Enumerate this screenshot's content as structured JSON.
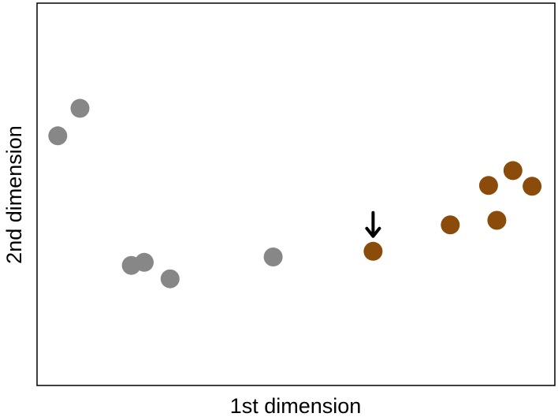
{
  "chart_data": {
    "type": "scatter",
    "title": "",
    "xlabel": "1st dimension",
    "ylabel": "2nd dimension",
    "xlim": [
      0,
      100
    ],
    "ylim": [
      0,
      100
    ],
    "grid": false,
    "ticks_shown": false,
    "series": [
      {
        "color": "#878787",
        "points": [
          {
            "x": 4.0,
            "y": 65.3
          },
          {
            "x": 8.3,
            "y": 72.5
          },
          {
            "x": 18.2,
            "y": 31.4
          },
          {
            "x": 20.7,
            "y": 32.2
          },
          {
            "x": 25.7,
            "y": 27.9
          },
          {
            "x": 45.6,
            "y": 33.6
          }
        ]
      },
      {
        "color": "#8b4c0b",
        "points": [
          {
            "x": 64.9,
            "y": 35.1
          },
          {
            "x": 79.8,
            "y": 42.0
          },
          {
            "x": 87.2,
            "y": 52.3
          },
          {
            "x": 88.8,
            "y": 43.2
          },
          {
            "x": 91.9,
            "y": 56.2
          },
          {
            "x": 95.6,
            "y": 52.1
          }
        ]
      }
    ],
    "annotations": [
      {
        "type": "arrow",
        "direction": "down",
        "x": 64.9,
        "y": 35.1
      }
    ]
  }
}
